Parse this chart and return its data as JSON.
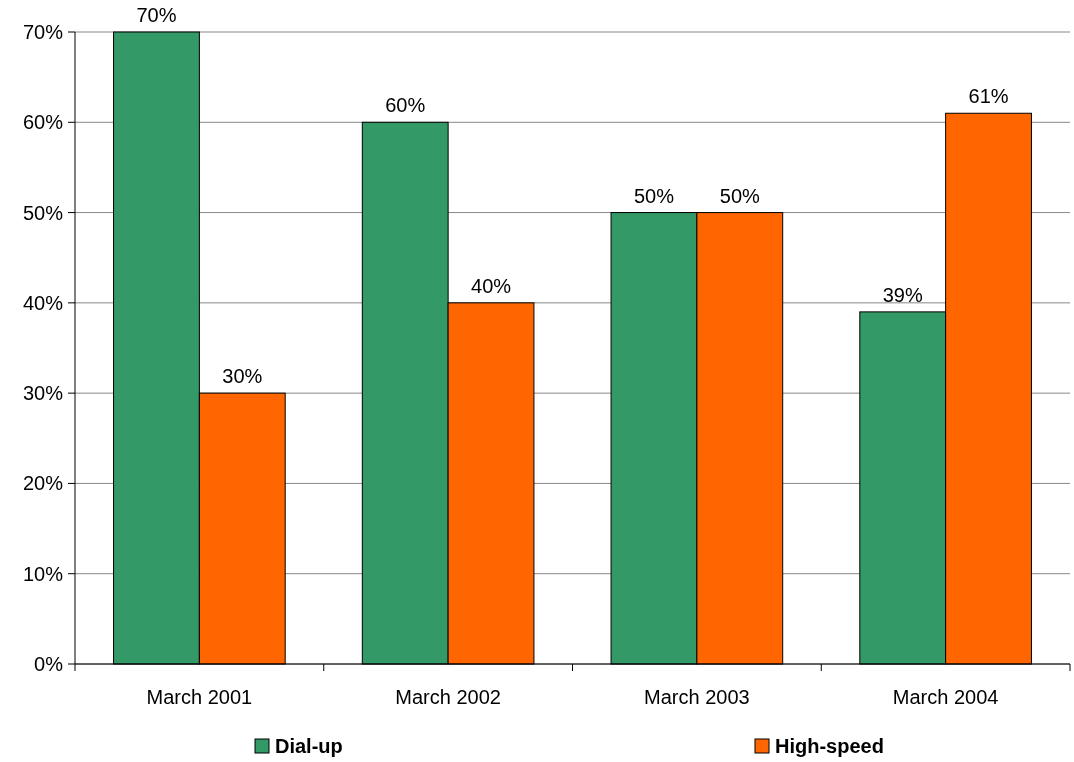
{
  "chart_data": {
    "type": "bar",
    "categories": [
      "March 2001",
      "March 2002",
      "March 2003",
      "March 2004"
    ],
    "series": [
      {
        "name": "Dial-up",
        "color": "#339966",
        "values": [
          70,
          60,
          50,
          39
        ],
        "value_labels": [
          "70%",
          "60%",
          "50%",
          "39%"
        ]
      },
      {
        "name": "High-speed",
        "color": "#ff6600",
        "values": [
          30,
          40,
          50,
          61
        ],
        "value_labels": [
          "30%",
          "40%",
          "50%",
          "61%"
        ]
      }
    ],
    "ylim": [
      0,
      70
    ],
    "yticks": [
      {
        "value": 0,
        "label": "0%"
      },
      {
        "value": 10,
        "label": "10%"
      },
      {
        "value": 20,
        "label": "20%"
      },
      {
        "value": 30,
        "label": "30%"
      },
      {
        "value": 40,
        "label": "40%"
      },
      {
        "value": 50,
        "label": "50%"
      },
      {
        "value": 60,
        "label": "60%"
      },
      {
        "value": 70,
        "label": "70%"
      }
    ],
    "grid": "y",
    "legend": "bottom"
  }
}
